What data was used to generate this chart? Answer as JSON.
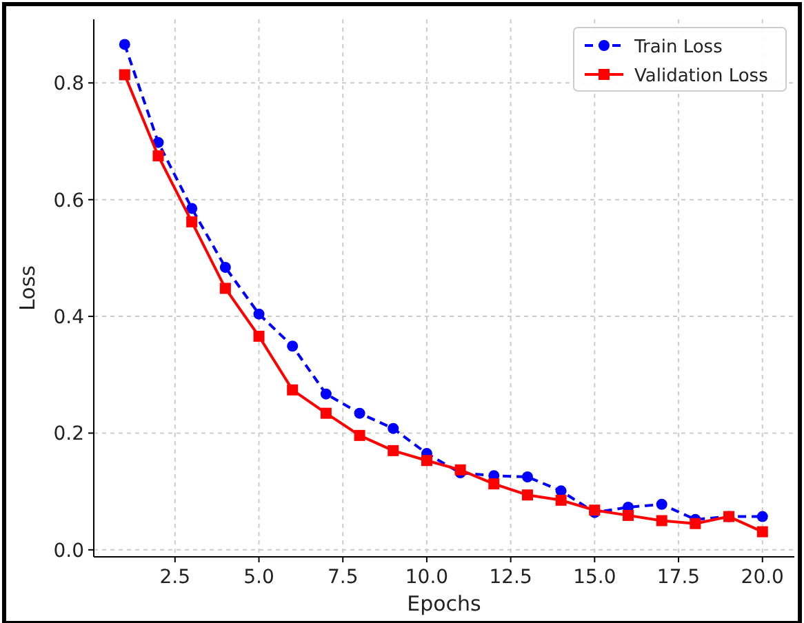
{
  "chart_data": {
    "type": "line",
    "xlabel": "Epochs",
    "ylabel": "Loss",
    "x": [
      1,
      2,
      3,
      4,
      5,
      6,
      7,
      8,
      9,
      10,
      11,
      12,
      13,
      14,
      15,
      16,
      17,
      18,
      19,
      20
    ],
    "series": [
      {
        "name": "Train Loss",
        "color": "#0000ff",
        "marker": "circle",
        "line_style": "dashed",
        "values": [
          0.866,
          0.698,
          0.585,
          0.484,
          0.404,
          0.349,
          0.267,
          0.234,
          0.208,
          0.165,
          0.132,
          0.127,
          0.125,
          0.101,
          0.064,
          0.073,
          0.078,
          0.052,
          0.057,
          0.057
        ]
      },
      {
        "name": "Validation Loss",
        "color": "#ff0000",
        "marker": "square",
        "line_style": "solid",
        "values": [
          0.814,
          0.675,
          0.562,
          0.448,
          0.366,
          0.274,
          0.234,
          0.196,
          0.17,
          0.153,
          0.137,
          0.113,
          0.094,
          0.085,
          0.068,
          0.059,
          0.05,
          0.045,
          0.057,
          0.031
        ]
      }
    ],
    "xlim": [
      0.08,
      20.95
    ],
    "ylim": [
      -0.012,
      0.909
    ],
    "xticks": [
      {
        "value": 2.5,
        "label": "2.5"
      },
      {
        "value": 5,
        "label": "5.0"
      },
      {
        "value": 7.5,
        "label": "7.5"
      },
      {
        "value": 10,
        "label": "10.0"
      },
      {
        "value": 12.5,
        "label": "12.5"
      },
      {
        "value": 15,
        "label": "15.0"
      },
      {
        "value": 17.5,
        "label": "17.5"
      },
      {
        "value": 20,
        "label": "20.0"
      }
    ],
    "yticks": [
      {
        "value": 0,
        "label": "0.0"
      },
      {
        "value": 0.2,
        "label": "0.2"
      },
      {
        "value": 0.4,
        "label": "0.4"
      },
      {
        "value": 0.6,
        "label": "0.6"
      },
      {
        "value": 0.8,
        "label": "0.8"
      }
    ],
    "grid": true,
    "legend": "top right"
  }
}
